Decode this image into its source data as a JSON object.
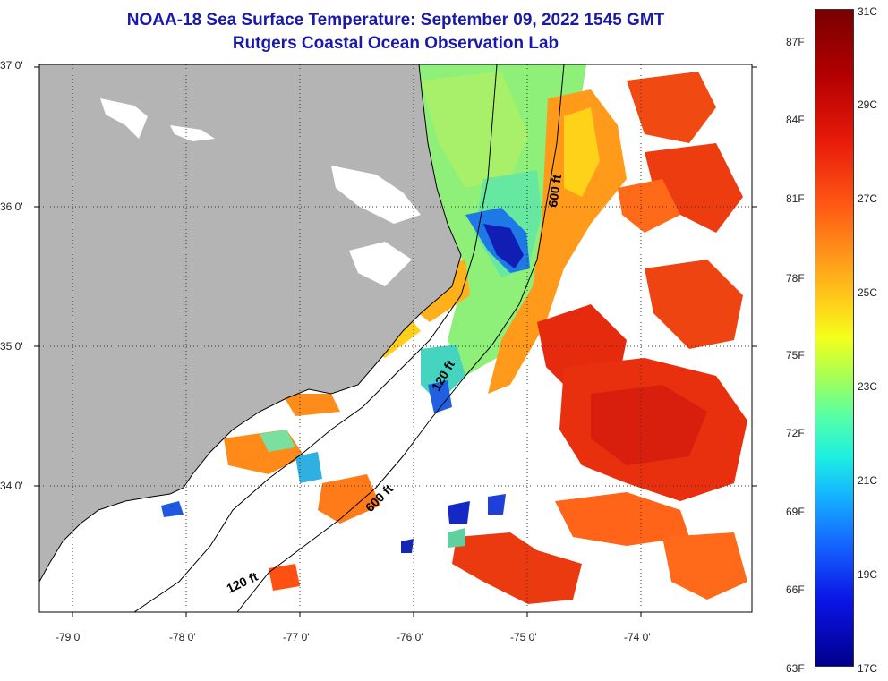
{
  "title": {
    "line1": "NOAA-18 Sea Surface Temperature:  September 09, 2022 1545 GMT",
    "line2": "Rutgers Coastal Ocean Observation Lab"
  },
  "map": {
    "lat_labels": [
      "37 0'",
      "36 0'",
      "35 0'",
      "34 0'"
    ],
    "lon_labels": [
      "-79 0'",
      "-78 0'",
      "-77 0'",
      "-76 0'",
      "-75 0'",
      "-74 0'"
    ],
    "contour_labels": [
      "600 ft",
      "120 ft",
      "600 ft",
      "120 ft"
    ],
    "colors": {
      "land": "#b4b4b4",
      "cloud": "#ffffff",
      "contour": "#000000"
    }
  },
  "colorbar": {
    "fahrenheit": [
      "87F",
      "84F",
      "81F",
      "78F",
      "75F",
      "72F",
      "69F",
      "66F",
      "63F"
    ],
    "celsius": [
      "31C",
      "29C",
      "27C",
      "25C",
      "23C",
      "21C",
      "19C",
      "17C"
    ],
    "range_c": [
      17,
      31
    ]
  }
}
